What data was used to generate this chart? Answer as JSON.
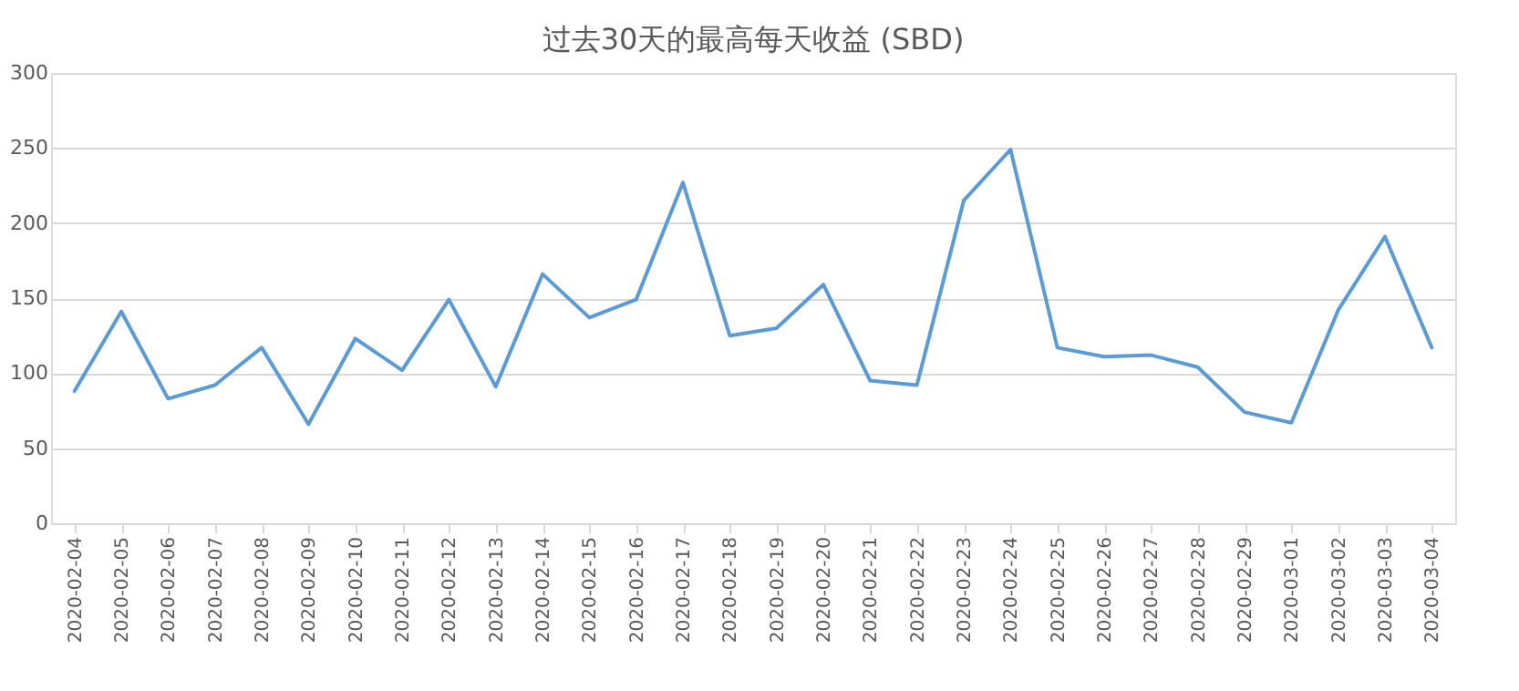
{
  "chart_data": {
    "type": "line",
    "title": "过去30天的最高每天收益 (SBD)",
    "categories": [
      "2020-02-04",
      "2020-02-05",
      "2020-02-06",
      "2020-02-07",
      "2020-02-08",
      "2020-02-09",
      "2020-02-10",
      "2020-02-11",
      "2020-02-12",
      "2020-02-13",
      "2020-02-14",
      "2020-02-15",
      "2020-02-16",
      "2020-02-17",
      "2020-02-18",
      "2020-02-19",
      "2020-02-20",
      "2020-02-21",
      "2020-02-22",
      "2020-02-23",
      "2020-02-24",
      "2020-02-25",
      "2020-02-26",
      "2020-02-27",
      "2020-02-28",
      "2020-02-29",
      "2020-03-01",
      "2020-03-02",
      "2020-03-03",
      "2020-03-04"
    ],
    "series": [
      {
        "color": "#5b9bd5",
        "values": [
          88,
          141,
          83,
          92,
          117,
          66,
          123,
          102,
          149,
          91,
          166,
          137,
          149,
          227,
          125,
          130,
          159,
          95,
          92,
          215,
          249,
          117,
          111,
          112,
          104,
          74,
          67,
          142,
          191,
          117
        ]
      }
    ],
    "ylim": [
      0,
      300
    ],
    "yticks": [
      0,
      50,
      100,
      150,
      200,
      250,
      300
    ],
    "grid": "y",
    "marker": "none",
    "line_style": "solid"
  }
}
